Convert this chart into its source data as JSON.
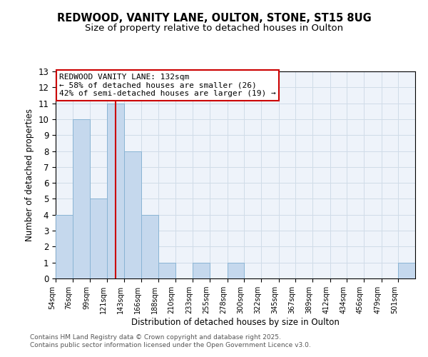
{
  "title": "REDWOOD, VANITY LANE, OULTON, STONE, ST15 8UG",
  "subtitle": "Size of property relative to detached houses in Oulton",
  "xlabel": "Distribution of detached houses by size in Oulton",
  "ylabel": "Number of detached properties",
  "bin_labels": [
    "54sqm",
    "76sqm",
    "99sqm",
    "121sqm",
    "143sqm",
    "166sqm",
    "188sqm",
    "210sqm",
    "233sqm",
    "255sqm",
    "278sqm",
    "300sqm",
    "322sqm",
    "345sqm",
    "367sqm",
    "389sqm",
    "412sqm",
    "434sqm",
    "456sqm",
    "479sqm",
    "501sqm"
  ],
  "bin_edges": [
    54,
    76,
    99,
    121,
    143,
    166,
    188,
    210,
    233,
    255,
    278,
    300,
    322,
    345,
    367,
    389,
    412,
    434,
    456,
    479,
    501
  ],
  "bar_values": [
    4,
    10,
    5,
    11,
    8,
    4,
    1,
    0,
    1,
    0,
    1,
    0,
    0,
    0,
    0,
    0,
    0,
    0,
    0,
    0,
    1
  ],
  "bar_color": "#c5d8ed",
  "bar_edgecolor": "#8ab4d4",
  "property_size": 132,
  "vline_color": "#cc0000",
  "annotation_title": "REDWOOD VANITY LANE: 132sqm",
  "annotation_line1": "← 58% of detached houses are smaller (26)",
  "annotation_line2": "42% of semi-detached houses are larger (19) →",
  "annotation_box_edgecolor": "#cc0000",
  "ylim": [
    0,
    13
  ],
  "yticks": [
    0,
    1,
    2,
    3,
    4,
    5,
    6,
    7,
    8,
    9,
    10,
    11,
    12,
    13
  ],
  "grid_color": "#d0dce8",
  "background_color": "#eef3fa",
  "footer1": "Contains HM Land Registry data © Crown copyright and database right 2025.",
  "footer2": "Contains public sector information licensed under the Open Government Licence v3.0.",
  "title_fontsize": 10.5,
  "subtitle_fontsize": 9.5
}
